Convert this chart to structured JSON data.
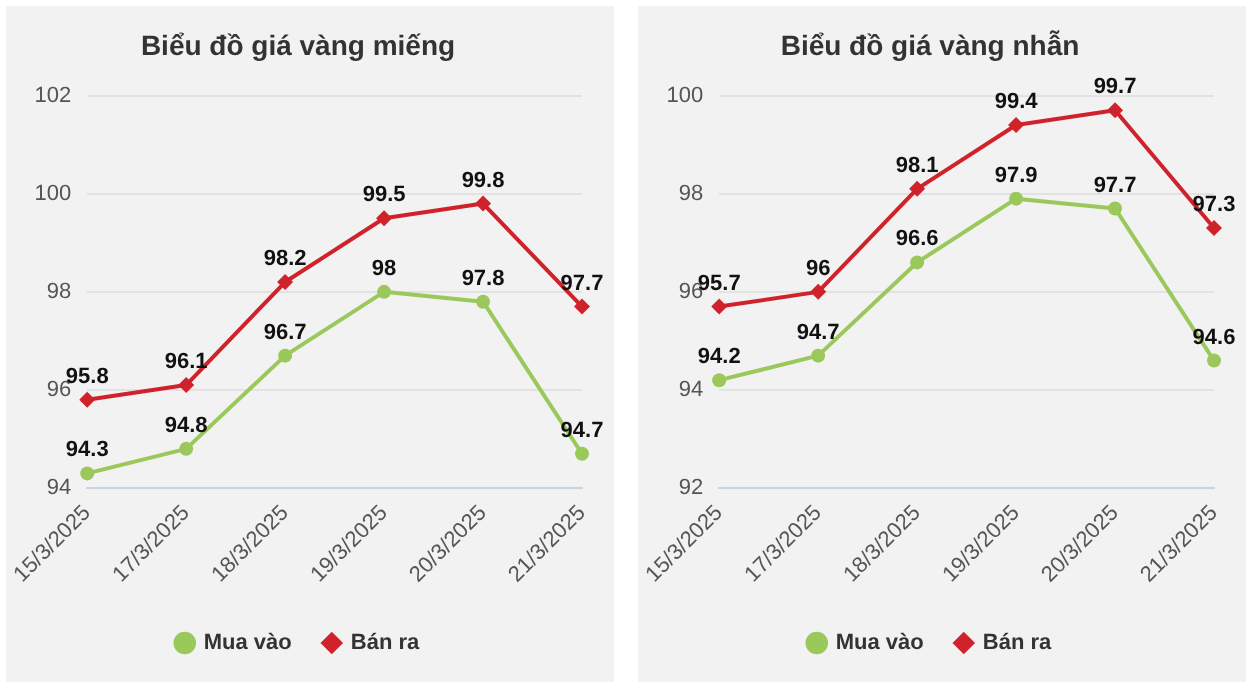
{
  "chart_data": [
    {
      "type": "line",
      "title": "Biểu đồ giá vàng miếng",
      "categories": [
        "15/3/2025",
        "17/3/2025",
        "18/3/2025",
        "19/3/2025",
        "20/3/2025",
        "21/3/2025"
      ],
      "series": [
        {
          "name": "Mua vào",
          "color": "#9bc85a",
          "marker": "circle",
          "values": [
            94.3,
            94.8,
            96.7,
            98,
            97.8,
            94.7
          ]
        },
        {
          "name": "Bán ra",
          "color": "#d0222b",
          "marker": "diamond",
          "values": [
            95.8,
            96.1,
            98.2,
            99.5,
            99.8,
            97.7
          ]
        }
      ],
      "ylim": [
        94,
        102
      ],
      "yticks": [
        94,
        96,
        98,
        100,
        102
      ],
      "grid": "y",
      "legend": "bottom",
      "data_labels": true,
      "line_style": "solid"
    },
    {
      "type": "line",
      "title": "Biểu đồ giá vàng nhẫn",
      "categories": [
        "15/3/2025",
        "17/3/2025",
        "18/3/2025",
        "19/3/2025",
        "20/3/2025",
        "21/3/2025"
      ],
      "series": [
        {
          "name": "Mua vào",
          "color": "#9bc85a",
          "marker": "circle",
          "values": [
            94.2,
            94.7,
            96.6,
            97.9,
            97.7,
            94.6
          ]
        },
        {
          "name": "Bán ra",
          "color": "#d0222b",
          "marker": "diamond",
          "values": [
            95.7,
            96,
            98.1,
            99.4,
            99.7,
            97.3
          ]
        }
      ],
      "ylim": [
        92,
        100
      ],
      "yticks": [
        92,
        94,
        96,
        98,
        100
      ],
      "grid": "y",
      "legend": "bottom",
      "data_labels": true,
      "line_style": "solid"
    }
  ]
}
